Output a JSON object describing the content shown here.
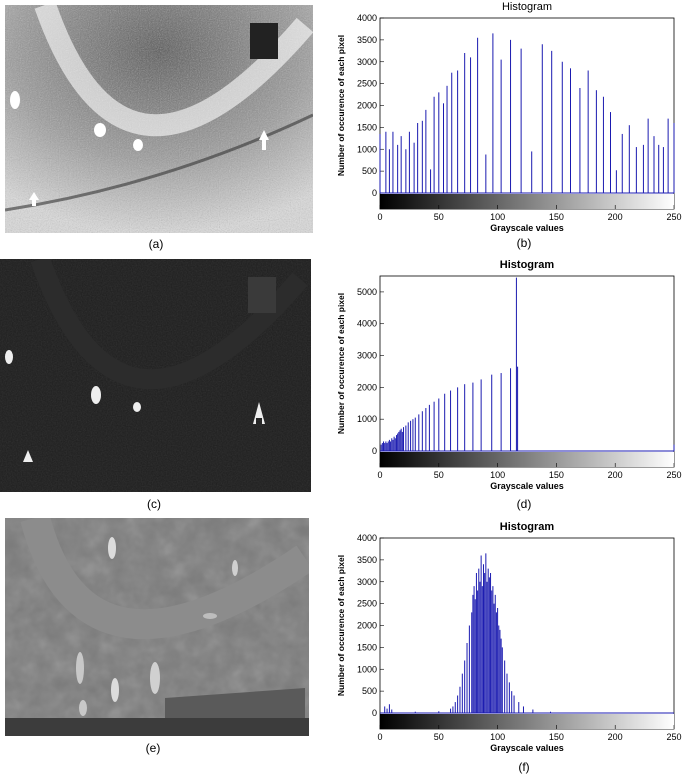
{
  "captions": {
    "a": "(a)",
    "b": "(b)",
    "c": "(c)",
    "d": "(d)",
    "e": "(e)",
    "f": "(f)"
  },
  "images": [
    {
      "id": "a",
      "description_icon": "thermal-image-high-contrast-icon"
    },
    {
      "id": "c",
      "description_icon": "thermal-image-dark-icon"
    },
    {
      "id": "e",
      "description_icon": "thermal-image-gray-icon"
    }
  ],
  "colors": {
    "bar": "#1a1ab0",
    "axis": "#000000"
  },
  "chart_data": [
    {
      "id": "b",
      "type": "bar",
      "title": "Histogram",
      "xlabel": "Grayscale values",
      "ylabel": "Number of occurence of each pixel",
      "xlim": [
        0,
        250
      ],
      "ylim": [
        0,
        4000
      ],
      "xticks": [
        0,
        50,
        100,
        150,
        200,
        250
      ],
      "yticks": [
        0,
        500,
        1000,
        1500,
        2000,
        2500,
        3000,
        3500,
        4000
      ],
      "x": [
        0,
        5,
        8,
        11,
        15,
        18,
        22,
        25,
        29,
        32,
        36,
        39,
        43,
        46,
        50,
        54,
        57,
        61,
        66,
        72,
        77,
        83,
        90,
        96,
        103,
        111,
        120,
        129,
        138,
        146,
        155,
        162,
        170,
        177,
        184,
        190,
        196,
        201,
        206,
        212,
        218,
        224,
        228,
        233,
        237,
        241,
        245,
        250
      ],
      "values": [
        1350,
        1400,
        1000,
        1400,
        1100,
        1300,
        1000,
        1400,
        1150,
        1600,
        1650,
        1900,
        540,
        2200,
        2300,
        2050,
        2450,
        2750,
        2800,
        3200,
        3100,
        3550,
        880,
        3650,
        3050,
        3500,
        3300,
        950,
        3400,
        3250,
        3000,
        2850,
        2400,
        2800,
        2350,
        2200,
        1850,
        520,
        1350,
        1550,
        1050,
        1100,
        1700,
        1300,
        1100,
        1050,
        1700,
        1600
      ]
    },
    {
      "id": "d",
      "type": "bar",
      "title": "Histogram",
      "xlabel": "Grayscale values",
      "ylabel": "Number of occurence of each pixel",
      "xlim": [
        0,
        250
      ],
      "ylim": [
        0,
        5500
      ],
      "xticks": [
        0,
        50,
        100,
        150,
        200,
        250
      ],
      "yticks": [
        0,
        1000,
        2000,
        3000,
        4000,
        5000
      ],
      "x": [
        1,
        2,
        3,
        4,
        5,
        6,
        7,
        8,
        9,
        10,
        11,
        12,
        13,
        14,
        15,
        16,
        17,
        18,
        19,
        20,
        22,
        24,
        26,
        28,
        30,
        33,
        36,
        39,
        42,
        46,
        50,
        55,
        60,
        66,
        72,
        79,
        86,
        95,
        103,
        111,
        116,
        117,
        250
      ],
      "values": [
        200,
        250,
        300,
        250,
        300,
        250,
        300,
        350,
        300,
        400,
        350,
        450,
        400,
        500,
        550,
        600,
        650,
        700,
        600,
        750,
        800,
        900,
        950,
        1000,
        1050,
        1150,
        1250,
        1350,
        1450,
        1550,
        1650,
        1800,
        1900,
        2000,
        2100,
        2150,
        2250,
        2400,
        2450,
        2600,
        5450,
        2650,
        200
      ]
    },
    {
      "id": "f",
      "type": "bar",
      "title": "Histogram",
      "xlabel": "Grayscale values",
      "ylabel": "Number of occurence of each pixel",
      "xlim": [
        0,
        250
      ],
      "ylim": [
        0,
        4000
      ],
      "xticks": [
        0,
        50,
        100,
        150,
        200,
        250
      ],
      "yticks": [
        0,
        500,
        1000,
        1500,
        2000,
        2500,
        3000,
        3500,
        4000
      ],
      "x": [
        4,
        6,
        8,
        10,
        30,
        50,
        60,
        62,
        64,
        66,
        68,
        70,
        72,
        74,
        76,
        78,
        79,
        80,
        81,
        82,
        83,
        84,
        85,
        86,
        87,
        88,
        89,
        90,
        91,
        92,
        93,
        94,
        95,
        96,
        97,
        98,
        99,
        100,
        101,
        102,
        103,
        104,
        106,
        108,
        110,
        112,
        114,
        118,
        122,
        130,
        145
      ],
      "values": [
        150,
        100,
        200,
        80,
        30,
        40,
        100,
        150,
        250,
        400,
        600,
        900,
        1200,
        1600,
        2000,
        2300,
        2700,
        2900,
        2600,
        3200,
        2800,
        3300,
        3000,
        3600,
        2900,
        3400,
        3200,
        3650,
        3000,
        3300,
        3100,
        3200,
        2800,
        2900,
        2500,
        2700,
        2300,
        2400,
        2000,
        1900,
        1700,
        1500,
        1200,
        900,
        700,
        500,
        400,
        250,
        150,
        80,
        30
      ]
    }
  ]
}
